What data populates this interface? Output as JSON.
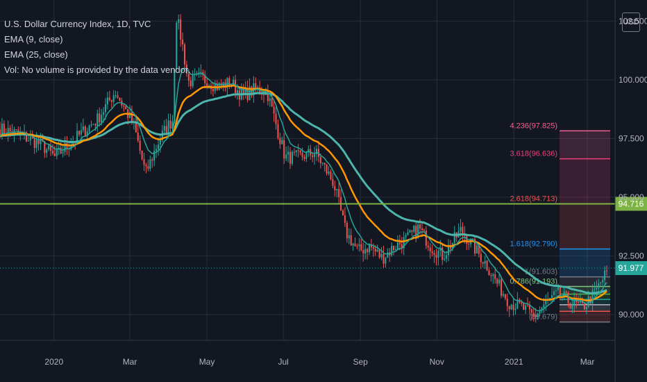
{
  "legend": {
    "title": "U.S. Dollar Currency Index, 1D, TVC",
    "ema9": "EMA (9, close)",
    "ema25": "EMA (25, close)",
    "vol": "Vol: No volume is provided by the data vendor."
  },
  "currency_button": "USD",
  "colors": {
    "background": "#131722",
    "grid": "#2a2e39",
    "axis_text": "#b2b5be",
    "candle_up": "#26a69a",
    "candle_down": "#ef5350",
    "ema9": "#26a69a",
    "ema25": "#ff9800",
    "ema_long": "#4db6ac",
    "hline": "#7cb342",
    "last_price": "#26a69a"
  },
  "chart_data": {
    "type": "candlestick",
    "symbol": "U.S. Dollar Currency Index",
    "timeframe": "1D",
    "exchange": "TVC",
    "ylim": [
      88.9,
      103.4
    ],
    "y_ticks": [
      "102.500",
      "100.000",
      "97.500",
      "95.000",
      "92.500",
      "90.000"
    ],
    "x_ticks": [
      "2020",
      "Mar",
      "May",
      "Jul",
      "Sep",
      "Nov",
      "2021",
      "Mar"
    ],
    "close_path": [
      {
        "t": 0,
        "v": 97.9
      },
      {
        "t": 0.03,
        "v": 97.7
      },
      {
        "t": 0.07,
        "v": 97.2
      },
      {
        "t": 0.09,
        "v": 96.7
      },
      {
        "t": 0.12,
        "v": 97.4
      },
      {
        "t": 0.16,
        "v": 98.3
      },
      {
        "t": 0.19,
        "v": 99.5
      },
      {
        "t": 0.22,
        "v": 98.1
      },
      {
        "t": 0.24,
        "v": 96.0
      },
      {
        "t": 0.26,
        "v": 97.3
      },
      {
        "t": 0.275,
        "v": 98.0
      },
      {
        "t": 0.285,
        "v": 98.3
      },
      {
        "t": 0.29,
        "v": 102.8
      },
      {
        "t": 0.3,
        "v": 101.6
      },
      {
        "t": 0.31,
        "v": 99.9
      },
      {
        "t": 0.33,
        "v": 100.1
      },
      {
        "t": 0.36,
        "v": 99.7
      },
      {
        "t": 0.38,
        "v": 99.9
      },
      {
        "t": 0.4,
        "v": 99.3
      },
      {
        "t": 0.42,
        "v": 99.6
      },
      {
        "t": 0.44,
        "v": 99.5
      },
      {
        "t": 0.47,
        "v": 96.7
      },
      {
        "t": 0.49,
        "v": 96.7
      },
      {
        "t": 0.52,
        "v": 96.9
      },
      {
        "t": 0.55,
        "v": 95.6
      },
      {
        "t": 0.57,
        "v": 93.5
      },
      {
        "t": 0.59,
        "v": 92.7
      },
      {
        "t": 0.61,
        "v": 92.9
      },
      {
        "t": 0.63,
        "v": 92.4
      },
      {
        "t": 0.65,
        "v": 92.9
      },
      {
        "t": 0.67,
        "v": 93.2
      },
      {
        "t": 0.69,
        "v": 93.7
      },
      {
        "t": 0.71,
        "v": 92.9
      },
      {
        "t": 0.73,
        "v": 92.5
      },
      {
        "t": 0.76,
        "v": 93.6
      },
      {
        "t": 0.78,
        "v": 92.9
      },
      {
        "t": 0.8,
        "v": 92.2
      },
      {
        "t": 0.82,
        "v": 91.3
      },
      {
        "t": 0.84,
        "v": 90.5
      },
      {
        "t": 0.86,
        "v": 90.3
      },
      {
        "t": 0.88,
        "v": 89.9
      },
      {
        "t": 0.9,
        "v": 90.5
      },
      {
        "t": 0.92,
        "v": 90.9
      },
      {
        "t": 0.94,
        "v": 90.5
      },
      {
        "t": 0.96,
        "v": 90.3
      },
      {
        "t": 0.98,
        "v": 90.9
      },
      {
        "t": 1.0,
        "v": 91.8
      }
    ],
    "horizontal_line": {
      "value": 94.716,
      "label": "94.716"
    },
    "last_price": {
      "value": 91.977,
      "label": "91.977"
    },
    "fibonacci": [
      {
        "ratio": "4.236",
        "value": 97.825,
        "label": "4.236(97.825)",
        "color": "#f06292"
      },
      {
        "ratio": "3.618",
        "value": 96.636,
        "label": "3.618(96.636)",
        "color": "#ec407a"
      },
      {
        "ratio": "2.618",
        "value": 94.713,
        "label": "2.618(94.713)",
        "color": "#ef5350"
      },
      {
        "ratio": "1.618",
        "value": 92.79,
        "label": "1.618(92.790)",
        "color": "#2196f3"
      },
      {
        "ratio": "1",
        "value": 91.603,
        "label": "1(91.603)",
        "color": "#787b86"
      },
      {
        "ratio": "0.786",
        "value": 91.193,
        "label": "0.786(91.193)",
        "color": "#81c784"
      },
      {
        "ratio": "0.618",
        "value": 90.869,
        "label": "",
        "color": "#4caf50"
      },
      {
        "ratio": "0.5",
        "value": 90.643,
        "label": "",
        "color": "#26a69a"
      },
      {
        "ratio": "0.382",
        "value": 90.417,
        "label": "",
        "color": "#b2b5be"
      },
      {
        "ratio": "0.236",
        "value": 90.134,
        "label": "",
        "color": "#ef5350"
      },
      {
        "ratio": "0",
        "value": 89.679,
        "label": "(89.679)",
        "color": "#787b86"
      }
    ]
  }
}
